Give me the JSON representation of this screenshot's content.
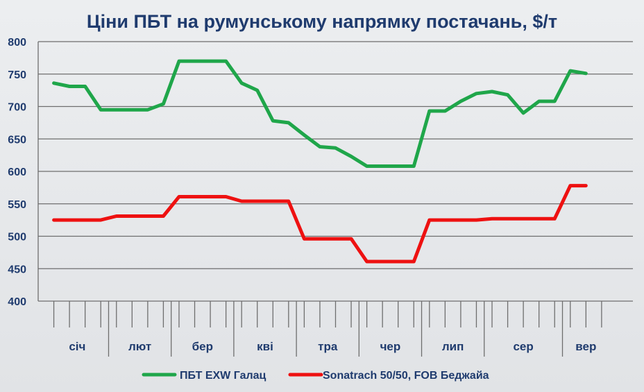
{
  "chart_data": {
    "type": "line",
    "title": "Ціни ПБТ на румунському напрямку постачань, $/т",
    "xlabel": "",
    "ylabel": "",
    "ylim": [
      400,
      800
    ],
    "yticks": [
      400,
      450,
      500,
      550,
      600,
      650,
      700,
      750,
      800
    ],
    "grid": true,
    "legend_position": "bottom",
    "months": [
      "січ",
      "лют",
      "бер",
      "кві",
      "тра",
      "чер",
      "лип",
      "сер",
      "вер"
    ],
    "weeks_per_month": [
      4,
      4,
      4,
      4,
      4,
      4,
      4,
      5,
      3
    ],
    "series": [
      {
        "name": "ПБТ EXW Галац",
        "color": "#1fa64a",
        "values": [
          736,
          731,
          731,
          695,
          695,
          695,
          695,
          704,
          770,
          770,
          770,
          770,
          736,
          725,
          678,
          675,
          656,
          638,
          636,
          623,
          608,
          608,
          608,
          608,
          693,
          693,
          708,
          720,
          723,
          718,
          690,
          708,
          708,
          755,
          751
        ]
      },
      {
        "name": "Sonatrach 50/50, FOB Беджайа",
        "color": "#ee1111",
        "values": [
          525,
          525,
          525,
          525,
          531,
          531,
          531,
          531,
          561,
          561,
          561,
          561,
          554,
          554,
          554,
          554,
          496,
          496,
          496,
          496,
          461,
          461,
          461,
          461,
          525,
          525,
          525,
          525,
          527,
          527,
          527,
          527,
          527,
          578,
          578
        ]
      }
    ]
  }
}
